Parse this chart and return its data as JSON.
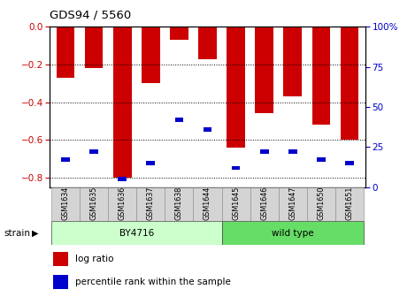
{
  "title": "GDS94 / 5560",
  "samples": [
    "GSM1634",
    "GSM1635",
    "GSM1636",
    "GSM1637",
    "GSM1638",
    "GSM1644",
    "GSM1645",
    "GSM1646",
    "GSM1647",
    "GSM1650",
    "GSM1651"
  ],
  "log_ratio": [
    -0.27,
    -0.22,
    -0.8,
    -0.3,
    -0.07,
    -0.17,
    -0.64,
    -0.46,
    -0.37,
    -0.52,
    -0.6
  ],
  "percentile_pct": [
    17,
    22,
    5,
    15,
    42,
    36,
    12,
    22,
    22,
    17,
    15
  ],
  "bar_color": "#cc0000",
  "blue_color": "#0000cc",
  "ylim_left": [
    -0.85,
    0.0
  ],
  "ylim_right": [
    0.0,
    100.0
  ],
  "yticks_left": [
    0.0,
    -0.2,
    -0.4,
    -0.6,
    -0.8
  ],
  "yticks_right": [
    0,
    25,
    50,
    75,
    100
  ],
  "strains": [
    {
      "label": "BY4716",
      "start": 0,
      "end": 5,
      "color": "#ccffcc"
    },
    {
      "label": "wild type",
      "start": 6,
      "end": 10,
      "color": "#66dd66"
    }
  ],
  "strain_label": "strain",
  "legend_red": "log ratio",
  "legend_blue": "percentile rank within the sample",
  "tick_color_left": "#cc0000",
  "tick_color_right": "#0000cc"
}
